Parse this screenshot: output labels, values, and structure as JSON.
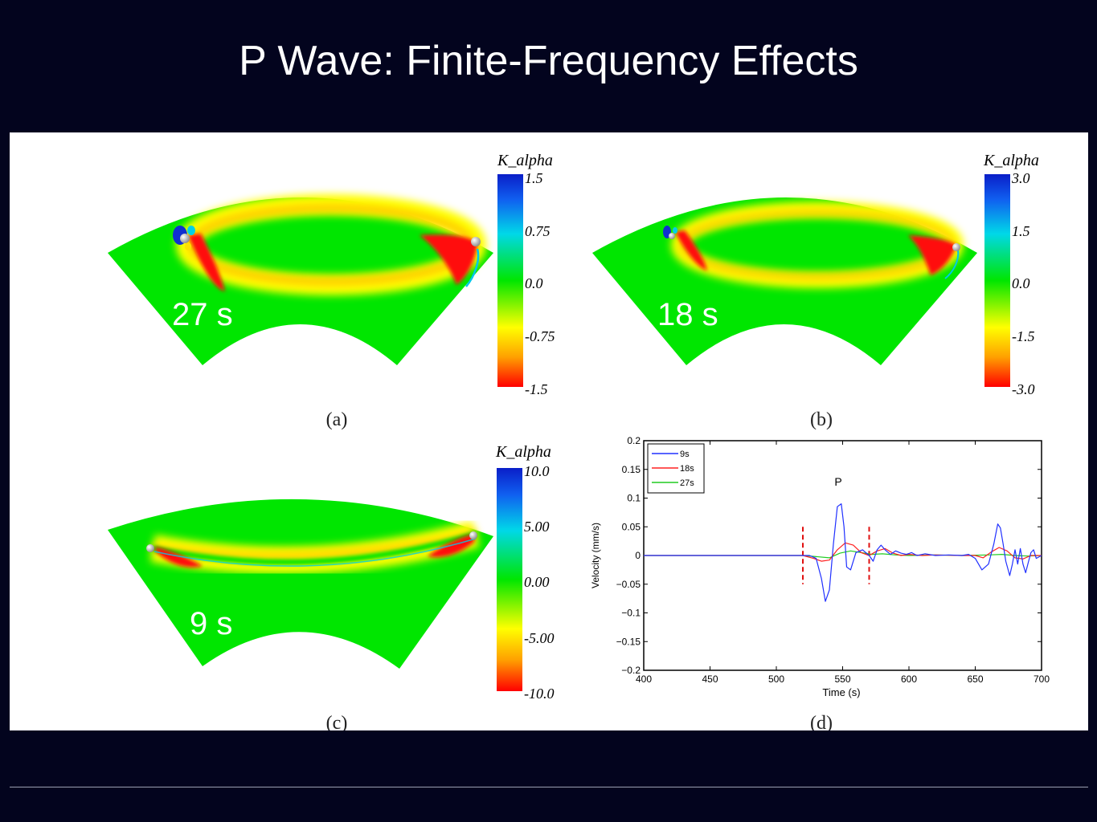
{
  "slide": {
    "title": "P Wave: Finite-Frequency Effects"
  },
  "panels": [
    {
      "id": "a",
      "caption": "(a)",
      "period_label": "27 s",
      "colorbar": {
        "title": "K_alpha",
        "ticks": [
          "1.5",
          "0.75",
          "0.0",
          "-0.75",
          "-1.5"
        ]
      }
    },
    {
      "id": "b",
      "caption": "(b)",
      "period_label": "18 s",
      "colorbar": {
        "title": "K_alpha",
        "ticks": [
          "3.0",
          "1.5",
          "0.0",
          "-1.5",
          "-3.0"
        ]
      }
    },
    {
      "id": "c",
      "caption": "(c)",
      "period_label": "9 s",
      "colorbar": {
        "title": "K_alpha",
        "ticks": [
          "10.0",
          "5.00",
          "0.00",
          "-5.00",
          "-10.0"
        ]
      }
    }
  ],
  "colormap": [
    "#1030c8",
    "#00c8e0",
    "#00e600",
    "#ffff00",
    "#ff0000"
  ],
  "plot_d": {
    "caption": "(d)",
    "phase_label": "P",
    "window_markers_x": [
      520,
      570
    ]
  },
  "chart_data": {
    "type": "line",
    "xlabel": "Time (s)",
    "ylabel": "Velocity (mm/s)",
    "xlim": [
      400,
      700
    ],
    "ylim": [
      -0.2,
      0.2
    ],
    "x_ticks": [
      "400",
      "450",
      "500",
      "550",
      "600",
      "650",
      "700"
    ],
    "y_ticks": [
      "0.2",
      "0.15",
      "0.1",
      "0.05",
      "0",
      "−0.05",
      "−0.1",
      "−0.15",
      "−0.2"
    ],
    "legend_position": "top-left",
    "series": [
      {
        "name": "9s",
        "color": "#2030ff",
        "x": [
          400,
          525,
          530,
          534,
          537,
          540,
          543,
          546,
          549,
          551,
          553,
          556,
          560,
          565,
          570,
          573,
          576,
          579,
          582,
          586,
          590,
          594,
          598,
          602,
          606,
          612,
          620,
          630,
          640,
          645,
          650,
          655,
          660,
          664,
          667,
          669,
          671,
          673,
          676,
          678,
          680,
          682,
          684,
          686,
          688,
          690,
          692,
          694,
          696,
          700
        ],
        "y": [
          0,
          0,
          -0.005,
          -0.04,
          -0.08,
          -0.06,
          0.02,
          0.085,
          0.09,
          0.05,
          -0.02,
          -0.025,
          0.005,
          0.01,
          0.0,
          -0.01,
          0.01,
          0.018,
          0.01,
          0.002,
          0.008,
          0.004,
          0.002,
          0.005,
          0.0,
          0.003,
          0.0,
          0.001,
          0.0,
          0.002,
          -0.005,
          -0.025,
          -0.015,
          0.02,
          0.055,
          0.048,
          0.02,
          -0.01,
          -0.035,
          -0.015,
          0.01,
          -0.015,
          0.012,
          -0.015,
          -0.03,
          -0.012,
          0.005,
          0.01,
          -0.005,
          0.0
        ]
      },
      {
        "name": "18s",
        "color": "#ff2020",
        "x": [
          400,
          520,
          528,
          534,
          540,
          546,
          552,
          558,
          564,
          570,
          576,
          582,
          588,
          594,
          600,
          610,
          620,
          640,
          650,
          656,
          662,
          668,
          674,
          680,
          686,
          692,
          700
        ],
        "y": [
          0,
          0,
          -0.005,
          -0.01,
          -0.008,
          0.01,
          0.022,
          0.018,
          0.005,
          0.0,
          0.008,
          0.012,
          0.004,
          0.0,
          0.002,
          0.0,
          0.001,
          0.0,
          0.0,
          -0.004,
          0.006,
          0.014,
          0.008,
          -0.004,
          -0.006,
          0.0,
          0.0
        ]
      },
      {
        "name": "27s",
        "color": "#20cc20",
        "x": [
          400,
          520,
          530,
          540,
          548,
          556,
          564,
          572,
          580,
          590,
          600,
          620,
          640,
          660,
          670,
          680,
          690,
          700
        ],
        "y": [
          0,
          0,
          -0.002,
          -0.004,
          0.004,
          0.008,
          0.005,
          0.002,
          0.003,
          0.001,
          0.0,
          0.001,
          0.0,
          0.001,
          0.002,
          0.0,
          -0.001,
          0.0
        ]
      }
    ]
  }
}
